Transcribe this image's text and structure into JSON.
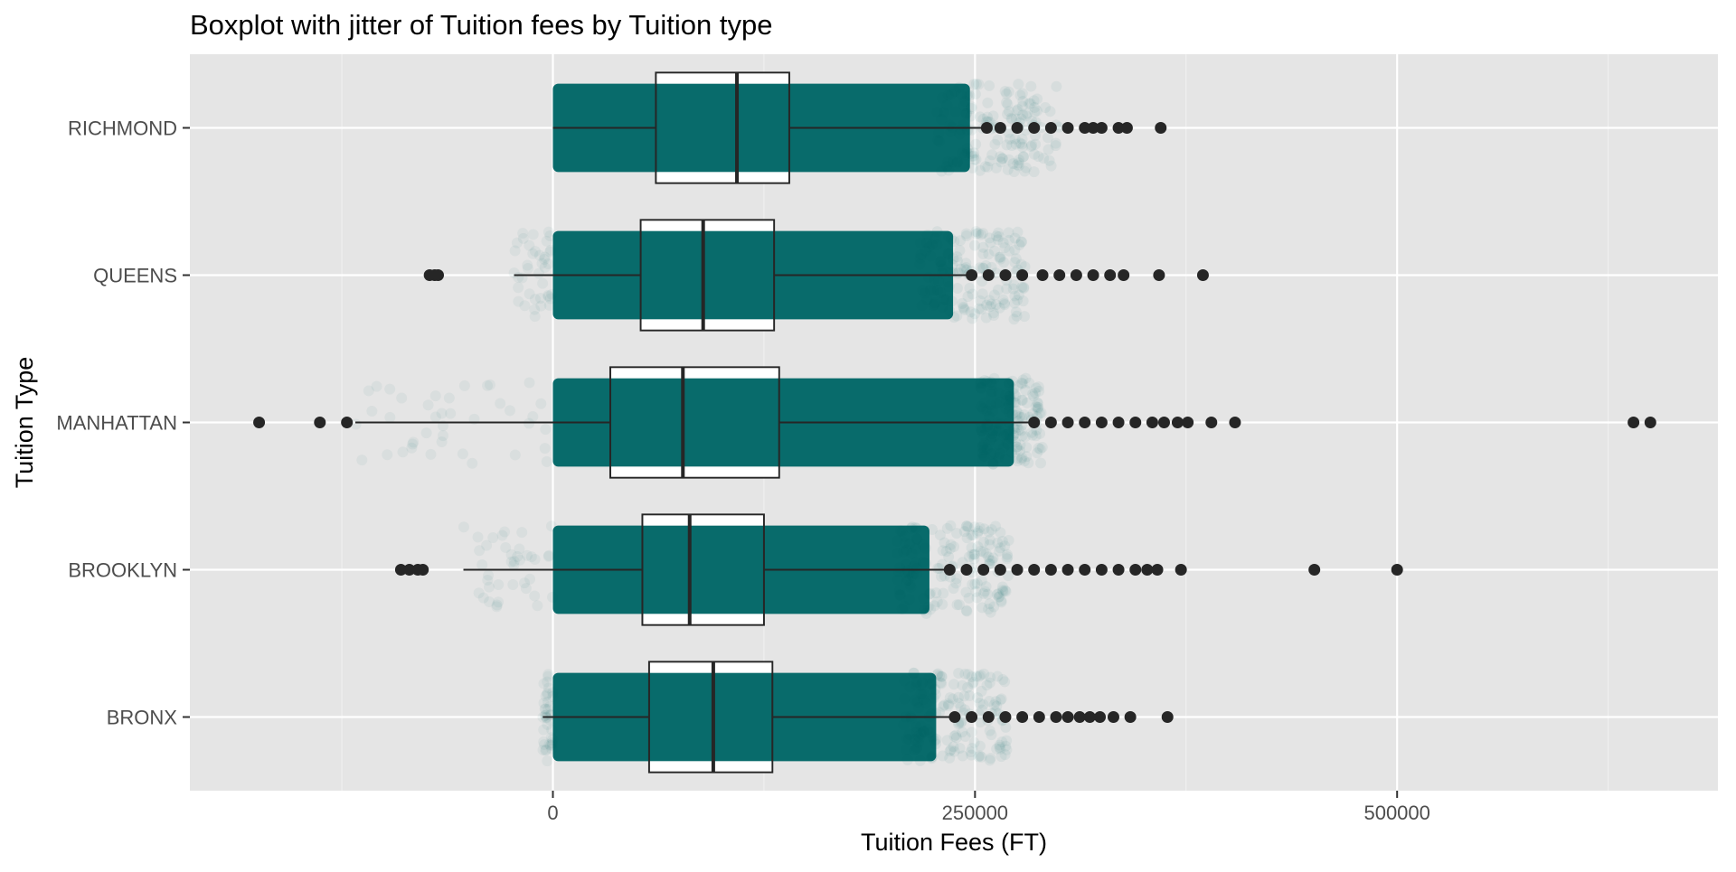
{
  "chart_data": {
    "type": "boxplot",
    "title": "Boxplot with jitter of Tuition fees by Tuition type",
    "xlabel": "Tuition Fees (FT)",
    "ylabel": "Tuition Type",
    "xlim": [
      -215000,
      690000
    ],
    "x_ticks": [
      0,
      250000,
      500000
    ],
    "x_tick_labels": [
      "0",
      "250000",
      "500000"
    ],
    "x_minor_gridlines": [
      -125000,
      125000,
      375000,
      625000
    ],
    "categories": [
      "RICHMOND",
      "QUEENS",
      "MANHATTAN",
      "BROOKLYN",
      "BRONX"
    ],
    "grid": true,
    "jitter_color": "#006666",
    "box_outline_color": "#262626",
    "panel_background": "#e5e5e5",
    "boxes": [
      {
        "category": "RICHMOND",
        "whisker_low": 0,
        "q1": 61000,
        "median": 109000,
        "q3": 140000,
        "whisker_high": 257000,
        "jitter_range": [
          0,
          300000
        ],
        "outliers": [
          257000,
          265000,
          275000,
          285000,
          295000,
          305000,
          315000,
          320000,
          325000,
          335000,
          340000,
          360000
        ]
      },
      {
        "category": "QUEENS",
        "whisker_low": -23000,
        "q1": 52000,
        "median": 89000,
        "q3": 131000,
        "whisker_high": 247000,
        "jitter_range": [
          -3000,
          280000
        ],
        "outliers": [
          -73000,
          -70000,
          -68000,
          248000,
          258000,
          268000,
          278000,
          290000,
          300000,
          310000,
          320000,
          330000,
          338000,
          359000,
          385000
        ]
      },
      {
        "category": "MANHATTAN",
        "whisker_low": -117000,
        "q1": 34000,
        "median": 77000,
        "q3": 134000,
        "whisker_high": 283000,
        "jitter_range": [
          -3000,
          290000
        ],
        "outliers": [
          -174000,
          -138000,
          -122000,
          285000,
          295000,
          305000,
          315000,
          325000,
          335000,
          345000,
          355000,
          362000,
          370000,
          376000,
          390000,
          404000,
          640000,
          650000
        ]
      },
      {
        "category": "BROOKLYN",
        "whisker_low": -53000,
        "q1": 53000,
        "median": 81000,
        "q3": 125000,
        "whisker_high": 233000,
        "jitter_range": [
          -3000,
          270000
        ],
        "outliers": [
          -90000,
          -85000,
          -80000,
          -77000,
          235000,
          245000,
          255000,
          265000,
          275000,
          285000,
          295000,
          305000,
          315000,
          325000,
          335000,
          345000,
          352000,
          358000,
          372000,
          451000,
          500000
        ]
      },
      {
        "category": "BRONX",
        "whisker_low": -6000,
        "q1": 57000,
        "median": 95000,
        "q3": 130000,
        "whisker_high": 237000,
        "jitter_range": [
          -3000,
          270000
        ],
        "outliers": [
          238000,
          248000,
          258000,
          268000,
          278000,
          288000,
          298000,
          305000,
          312000,
          318000,
          324000,
          332000,
          342000,
          364000
        ]
      }
    ]
  }
}
